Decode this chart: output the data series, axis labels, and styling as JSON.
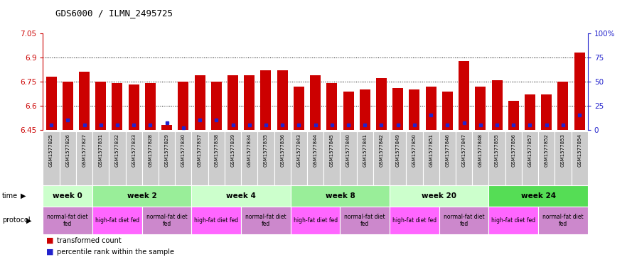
{
  "title": "GDS6000 / ILMN_2495725",
  "samples": [
    "GSM1577825",
    "GSM1577826",
    "GSM1577827",
    "GSM1577831",
    "GSM1577832",
    "GSM1577833",
    "GSM1577828",
    "GSM1577829",
    "GSM1577830",
    "GSM1577837",
    "GSM1577838",
    "GSM1577839",
    "GSM1577834",
    "GSM1577835",
    "GSM1577836",
    "GSM1577843",
    "GSM1577844",
    "GSM1577845",
    "GSM1577840",
    "GSM1577841",
    "GSM1577842",
    "GSM1577849",
    "GSM1577850",
    "GSM1577851",
    "GSM1577846",
    "GSM1577847",
    "GSM1577848",
    "GSM1577855",
    "GSM1577856",
    "GSM1577857",
    "GSM1577852",
    "GSM1577853",
    "GSM1577854"
  ],
  "red_values": [
    6.78,
    6.75,
    6.81,
    6.75,
    6.74,
    6.73,
    6.74,
    6.48,
    6.75,
    6.79,
    6.75,
    6.79,
    6.79,
    6.82,
    6.82,
    6.72,
    6.79,
    6.74,
    6.69,
    6.7,
    6.77,
    6.71,
    6.7,
    6.72,
    6.69,
    6.88,
    6.72,
    6.76,
    6.63,
    6.67,
    6.67,
    6.75,
    6.93
  ],
  "blue_percentiles": [
    5,
    10,
    5,
    5,
    5,
    5,
    5,
    7,
    2,
    10,
    10,
    5,
    5,
    5,
    5,
    5,
    5,
    5,
    5,
    5,
    5,
    5,
    5,
    15,
    5,
    7,
    5,
    5,
    5,
    5,
    5,
    5,
    15
  ],
  "ymin": 6.45,
  "ymax": 7.05,
  "yticks_left": [
    6.45,
    6.6,
    6.75,
    6.9,
    7.05
  ],
  "yticks_right": [
    0,
    25,
    50,
    75,
    100
  ],
  "ytick_labels_right": [
    "0",
    "25",
    "50",
    "75",
    "100%"
  ],
  "dotted_lines": [
    6.6,
    6.75,
    6.9
  ],
  "bar_color": "#cc0000",
  "dot_color": "#2222cc",
  "left_axis_color": "#cc0000",
  "right_axis_color": "#2222cc",
  "time_groups": [
    {
      "label": "week 0",
      "start": 0,
      "end": 3,
      "color": "#ccffcc"
    },
    {
      "label": "week 2",
      "start": 3,
      "end": 9,
      "color": "#99ee99"
    },
    {
      "label": "week 4",
      "start": 9,
      "end": 15,
      "color": "#ccffcc"
    },
    {
      "label": "week 8",
      "start": 15,
      "end": 21,
      "color": "#99ee99"
    },
    {
      "label": "week 20",
      "start": 21,
      "end": 27,
      "color": "#ccffcc"
    },
    {
      "label": "week 24",
      "start": 27,
      "end": 33,
      "color": "#55dd55"
    }
  ],
  "protocol_groups": [
    {
      "label": "normal-fat diet\nfed",
      "start": 0,
      "end": 3,
      "color": "#cc88cc"
    },
    {
      "label": "high-fat diet fed",
      "start": 3,
      "end": 6,
      "color": "#ff66ff"
    },
    {
      "label": "normal-fat diet\nfed",
      "start": 6,
      "end": 9,
      "color": "#cc88cc"
    },
    {
      "label": "high-fat diet fed",
      "start": 9,
      "end": 12,
      "color": "#ff66ff"
    },
    {
      "label": "normal-fat diet\nfed",
      "start": 12,
      "end": 15,
      "color": "#cc88cc"
    },
    {
      "label": "high-fat diet fed",
      "start": 15,
      "end": 18,
      "color": "#ff66ff"
    },
    {
      "label": "normal-fat diet\nfed",
      "start": 18,
      "end": 21,
      "color": "#cc88cc"
    },
    {
      "label": "high-fat diet fed",
      "start": 21,
      "end": 24,
      "color": "#ff66ff"
    },
    {
      "label": "normal-fat diet\nfed",
      "start": 24,
      "end": 27,
      "color": "#cc88cc"
    },
    {
      "label": "high-fat diet fed",
      "start": 27,
      "end": 30,
      "color": "#ff66ff"
    },
    {
      "label": "normal-fat diet\nfed",
      "start": 30,
      "end": 33,
      "color": "#cc88cc"
    }
  ],
  "tick_bg_color": "#cccccc",
  "tick_border_color": "#ffffff",
  "bg_color": "#ffffff"
}
